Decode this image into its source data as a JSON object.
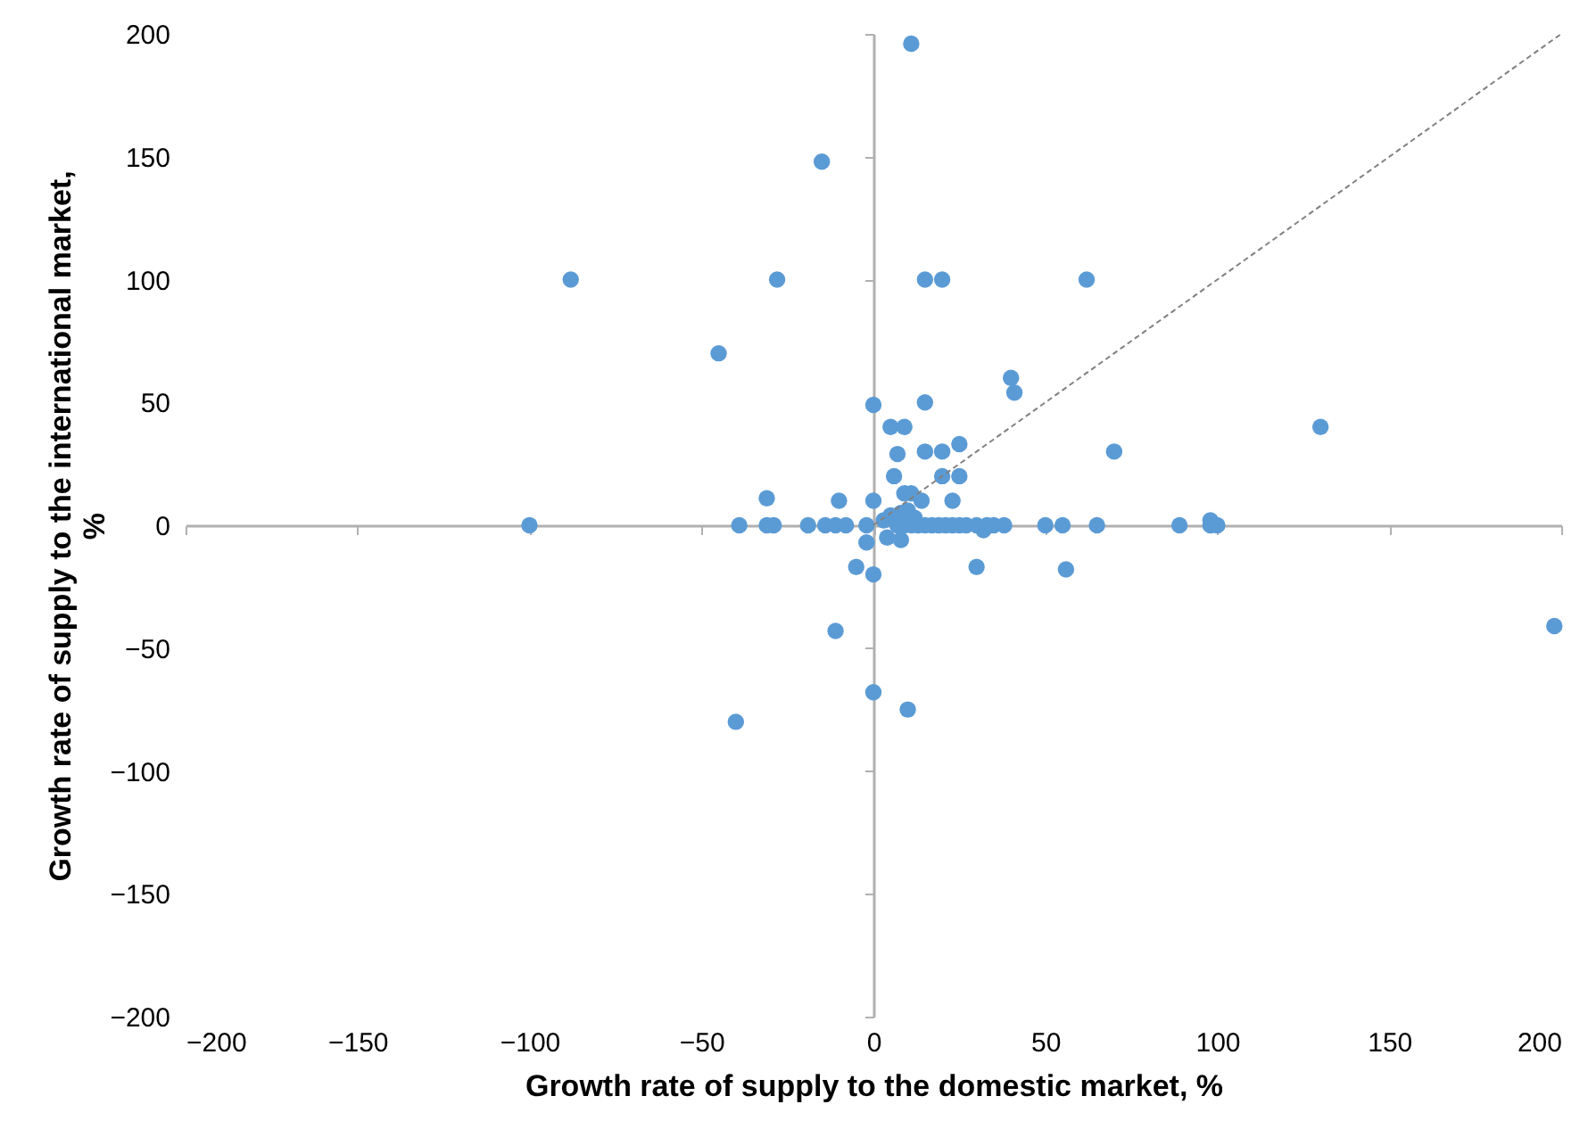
{
  "chart_data": {
    "type": "scatter",
    "xlabel": "Growth rate of supply to the domestic market, %",
    "ylabel": "Growth rate of supply to the international market, %",
    "xlim": [
      -200,
      200
    ],
    "ylim": [
      -200,
      200
    ],
    "xticks": [
      -200,
      -150,
      -100,
      -50,
      0,
      50,
      100,
      150,
      200
    ],
    "yticks": [
      -200,
      -150,
      -100,
      -50,
      0,
      50,
      100,
      150,
      200
    ],
    "marker": "circle",
    "series": [
      {
        "color": "#5b9bd5",
        "x": [
          11,
          -15,
          -88,
          -28,
          15,
          20,
          62,
          -45,
          40,
          41,
          0,
          15,
          5,
          9,
          25,
          15,
          20,
          70,
          7,
          6,
          20,
          25,
          23,
          14,
          9,
          11,
          0,
          -10,
          -31,
          -100,
          -39,
          -31,
          -29,
          -19,
          -14,
          -11,
          -8,
          -2,
          7,
          9,
          11,
          13,
          15,
          17,
          19,
          21,
          23,
          25,
          27,
          30,
          33,
          35,
          38,
          50,
          55,
          65,
          89,
          98,
          100,
          32,
          5,
          8,
          10,
          12,
          3,
          98,
          130,
          -2,
          -5,
          0,
          30,
          4,
          8,
          56,
          -11,
          0,
          10,
          -40,
          198
        ],
        "values": [
          196,
          148,
          100,
          100,
          100,
          100,
          100,
          70,
          60,
          54,
          49,
          50,
          40,
          40,
          33,
          30,
          30,
          30,
          29,
          20,
          20,
          20,
          10,
          10,
          13,
          13,
          10,
          10,
          11,
          0,
          0,
          0,
          0,
          0,
          0,
          0,
          0,
          0,
          0,
          0,
          0,
          0,
          0,
          0,
          0,
          0,
          0,
          0,
          0,
          0,
          0,
          0,
          0,
          0,
          0,
          0,
          0,
          0,
          0,
          -2,
          4,
          5,
          6,
          3,
          2,
          2,
          40,
          -7,
          -17,
          -20,
          -17,
          -5,
          -6,
          -18,
          -43,
          -68,
          -75,
          -80,
          -41
        ]
      },
      {
        "type": "line",
        "color": "#808080",
        "line_style": "dashed",
        "marker": "none",
        "x": [
          0,
          200
        ],
        "values": [
          0,
          200
        ]
      }
    ]
  }
}
